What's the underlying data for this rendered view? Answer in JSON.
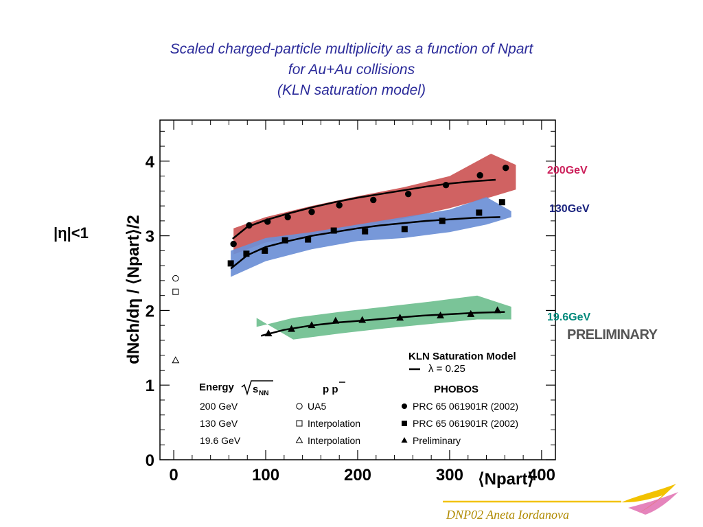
{
  "slide": {
    "title_lines": [
      "Scaled charged-particle multiplicity as a function of Npart",
      "for Au+Au collisions",
      "(KLN saturation model)"
    ],
    "eta_label": "|η|<1",
    "preliminary": "PRELIMINARY",
    "footer": "DNP02   Aneta Iordanova",
    "colors": {
      "title": "#2b2b9a",
      "footer": "#b08a00",
      "accent_line": "#f2c200"
    }
  },
  "chart_data": {
    "type": "scatter",
    "ylabel": "dNch/dη / ⟨Npart⟩/2",
    "xlabel": "⟨Npart⟩",
    "xlim": [
      -15,
      415
    ],
    "ylim": [
      0,
      4.55
    ],
    "x_ticks": [
      "0",
      "100",
      "200",
      "300",
      "400"
    ],
    "y_ticks": [
      "0",
      "1",
      "2",
      "3",
      "4"
    ],
    "energy_labels": [
      {
        "text": "200GeV",
        "color": "#cc1f5a"
      },
      {
        "text": "130GeV",
        "color": "#1a237e"
      },
      {
        "text": "19.6GeV",
        "color": "#00897b"
      }
    ],
    "series": [
      {
        "name": "PRC 65 061901R (2002)",
        "energy": "200 GeV",
        "marker": "circle",
        "band_color": "#cc5555",
        "x": [
          65,
          82,
          102,
          124,
          150,
          180,
          217,
          255,
          296,
          333,
          361
        ],
        "y": [
          2.89,
          3.14,
          3.19,
          3.25,
          3.32,
          3.41,
          3.48,
          3.56,
          3.68,
          3.81,
          3.91
        ],
        "band_x": [
          65,
          100,
          150,
          200,
          250,
          300,
          345,
          372
        ],
        "band_lo": [
          2.75,
          2.91,
          3.0,
          3.1,
          3.23,
          3.37,
          3.52,
          3.62
        ],
        "band_hi": [
          3.1,
          3.25,
          3.4,
          3.53,
          3.65,
          3.8,
          4.1,
          3.95
        ],
        "model_x": [
          64,
          80,
          100,
          125,
          150,
          175,
          200,
          225,
          250,
          275,
          300,
          325,
          350
        ],
        "model_y": [
          2.96,
          3.12,
          3.21,
          3.3,
          3.38,
          3.45,
          3.51,
          3.56,
          3.61,
          3.66,
          3.7,
          3.73,
          3.75
        ]
      },
      {
        "name": "PRC 65 061901R (2002)",
        "energy": "130 GeV",
        "marker": "square",
        "band_color": "#6b8fd6",
        "x": [
          62,
          79,
          99,
          121,
          146,
          174,
          208,
          251,
          292,
          332,
          357
        ],
        "y": [
          2.63,
          2.76,
          2.8,
          2.94,
          2.95,
          3.07,
          3.06,
          3.09,
          3.2,
          3.31,
          3.45
        ],
        "band_x": [
          62,
          100,
          150,
          200,
          250,
          300,
          340,
          367
        ],
        "band_lo": [
          2.45,
          2.66,
          2.82,
          2.93,
          2.97,
          3.05,
          3.15,
          3.25
        ],
        "band_hi": [
          2.8,
          2.97,
          3.05,
          3.15,
          3.25,
          3.35,
          3.52,
          3.33
        ],
        "model_x": [
          62,
          80,
          100,
          125,
          150,
          175,
          200,
          225,
          250,
          275,
          300,
          325,
          355
        ],
        "model_y": [
          2.56,
          2.74,
          2.85,
          2.93,
          3.0,
          3.05,
          3.1,
          3.14,
          3.17,
          3.2,
          3.22,
          3.24,
          3.25
        ]
      },
      {
        "name": "Preliminary",
        "energy": "19.6 GeV",
        "marker": "triangle",
        "band_color": "#6fbf8f",
        "x": [
          103,
          128,
          150,
          176,
          205,
          246,
          290,
          323,
          352
        ],
        "y": [
          1.69,
          1.75,
          1.8,
          1.86,
          1.87,
          1.9,
          1.93,
          1.95,
          2.0
        ],
        "band_x": [
          90,
          130,
          180,
          230,
          280,
          330,
          367
        ],
        "band_lo": [
          1.9,
          1.61,
          1.69,
          1.76,
          1.82,
          1.88,
          1.88
        ],
        "band_hi": [
          1.78,
          1.9,
          1.98,
          2.05,
          2.12,
          2.2,
          2.05
        ],
        "model_x": [
          95,
          120,
          150,
          180,
          210,
          240,
          270,
          300,
          330,
          360
        ],
        "model_y": [
          1.66,
          1.74,
          1.8,
          1.84,
          1.87,
          1.9,
          1.93,
          1.95,
          1.97,
          1.98
        ]
      }
    ],
    "ppbar_points": [
      {
        "label": "UA5",
        "marker": "circle",
        "x": 2,
        "y": 2.43
      },
      {
        "label": "Interpolation",
        "marker": "square",
        "x": 2,
        "y": 2.25
      },
      {
        "label": "Interpolation",
        "marker": "triangle",
        "x": 2,
        "y": 1.33
      }
    ],
    "legend": {
      "model_title": "KLN Saturation Model",
      "model_param": "λ = 0.25",
      "energy_header": "Energy",
      "sqrt_label": "s",
      "sqrt_sub": "NN",
      "pp_header": "p p",
      "phobos_header": "PHOBOS",
      "energies": [
        "200 GeV",
        "130 GeV",
        "19.6 GeV"
      ],
      "pp_entries": [
        "UA5",
        "Interpolation",
        "Interpolation"
      ],
      "phobos_entries": [
        "PRC 65 061901R (2002)",
        "PRC 65 061901R (2002)",
        "Preliminary"
      ]
    }
  }
}
